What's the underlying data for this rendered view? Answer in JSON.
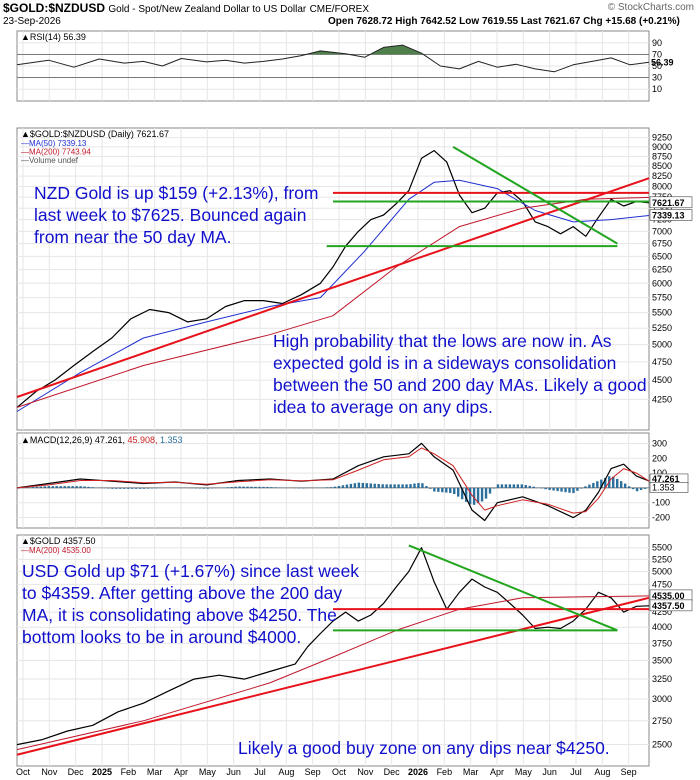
{
  "header": {
    "symbol": "$GOLD:$NZDUSD",
    "description": "Gold - Spot/New Zealand Dollar to US Dollar",
    "exchange": "CME/FOREX",
    "source": "© StockCharts.com",
    "date": "23-Sep-2026",
    "ohlc": "Open 7628.72 High 7642.52 Low 7619.55 Last 7621.67 Chg +15.68 (+0.21%)"
  },
  "colors": {
    "price": "#000000",
    "ma50": "#1f2fd0",
    "ma200": "#c0182b",
    "trend_red": "#e8121b",
    "trend_green": "#22a51f",
    "note_text": "#1010cc",
    "histogram": "#2b6f9c",
    "rsi_fill": "#4f7f4a",
    "macd": "#000000",
    "macd_signal": "#d02020"
  },
  "x_axis_labels": [
    "Oct",
    "Nov",
    "Dec",
    "2025",
    "Feb",
    "Mar",
    "Apr",
    "May",
    "Jun",
    "Jul",
    "Aug",
    "Sep",
    "Oct",
    "Nov",
    "Dec",
    "2026",
    "Feb",
    "Mar",
    "Apr",
    "May",
    "Jun",
    "Jul",
    "Aug",
    "Sep"
  ],
  "chart_data": [
    {
      "type": "line",
      "panel": "rsi",
      "title": "RSI(14) 56.39",
      "ylim": [
        0,
        100
      ],
      "yticks": [
        90,
        70,
        50,
        30,
        10
      ],
      "reference_lines": [
        70,
        30
      ],
      "last_value_label": "56.39",
      "series": [
        {
          "name": "RSI(14)",
          "x": [
            0,
            5,
            9,
            13,
            17,
            20,
            23,
            26,
            30,
            33,
            36,
            39,
            42,
            45,
            48,
            52,
            55,
            58,
            61,
            64,
            67,
            70,
            73,
            76,
            79,
            82,
            85,
            88,
            91,
            94,
            97,
            100
          ],
          "values": [
            52,
            60,
            48,
            62,
            55,
            58,
            50,
            63,
            57,
            60,
            55,
            58,
            62,
            68,
            76,
            71,
            65,
            82,
            86,
            72,
            50,
            45,
            58,
            48,
            53,
            45,
            40,
            52,
            58,
            64,
            52,
            56.39
          ]
        }
      ]
    },
    {
      "type": "line",
      "panel": "gold_nzd",
      "title": "$GOLD:$NZDUSD (Daily) 7621.67",
      "ylim": [
        3950,
        9350
      ],
      "log_scale": true,
      "yticks": [
        9250,
        9000,
        8750,
        8500,
        8250,
        8000,
        7750,
        7500,
        7250,
        7000,
        6750,
        6500,
        6250,
        6000,
        5750,
        5500,
        5250,
        5000,
        4750,
        4500,
        4250
      ],
      "legend": [
        "MA(50) 7339.13",
        "MA(200) 7743.94",
        "Volume undef"
      ],
      "last_labels": [
        "7621.67",
        "7339.13"
      ],
      "series": [
        {
          "name": "$GOLD:$NZDUSD",
          "x": [
            0,
            3,
            6,
            9,
            12,
            15,
            18,
            21,
            24,
            27,
            30,
            33,
            36,
            39,
            42,
            45,
            48,
            50,
            52,
            54,
            56,
            58,
            60,
            62,
            64,
            66,
            68,
            70,
            72,
            74,
            76,
            78,
            80,
            82,
            84,
            86,
            88,
            90,
            92,
            94,
            96,
            98,
            100
          ],
          "values": [
            4150,
            4350,
            4500,
            4700,
            4900,
            5100,
            5400,
            5550,
            5500,
            5350,
            5400,
            5600,
            5700,
            5700,
            5650,
            5800,
            6000,
            6300,
            6700,
            7000,
            7250,
            7350,
            7600,
            7900,
            8700,
            8900,
            8600,
            7800,
            7400,
            7500,
            7850,
            7900,
            7650,
            7200,
            7100,
            6950,
            7100,
            6900,
            7300,
            7700,
            7550,
            7650,
            7621.67
          ]
        },
        {
          "name": "MA(50)",
          "x": [
            0,
            10,
            20,
            30,
            40,
            48,
            55,
            62,
            66,
            70,
            76,
            82,
            88,
            94,
            100
          ],
          "values": [
            4100,
            4600,
            5100,
            5350,
            5600,
            5750,
            6600,
            7700,
            8100,
            8150,
            7950,
            7450,
            7200,
            7250,
            7339.13
          ]
        },
        {
          "name": "MA(200)",
          "x": [
            0,
            20,
            40,
            50,
            60,
            70,
            80,
            90,
            100
          ],
          "values": [
            4150,
            4700,
            5150,
            5450,
            6300,
            7100,
            7500,
            7700,
            7743.94
          ]
        }
      ],
      "trendlines": [
        {
          "color": "red",
          "x": [
            0,
            100
          ],
          "values": [
            4280,
            8200
          ]
        },
        {
          "color": "red",
          "x": [
            50,
            100
          ],
          "values": [
            7850,
            7850
          ]
        },
        {
          "color": "green",
          "x": [
            50,
            100
          ],
          "values": [
            7650,
            7650
          ]
        },
        {
          "color": "green",
          "x": [
            49,
            95
          ],
          "values": [
            6700,
            6700
          ]
        },
        {
          "color": "green",
          "x": [
            69,
            95
          ],
          "values": [
            9000,
            6750
          ]
        }
      ],
      "annotations": [
        "NZD Gold is up $159 (+2.13%), from last week to $7625. Bounced again from near the 50 day MA.",
        "High probability that the lows are now in. As expected gold is in a sideways consolidation between the 50 and 200 day MAs. Likely a good idea to average on any dips."
      ]
    },
    {
      "type": "line",
      "panel": "macd",
      "title": "MACD(12,26,9)",
      "values_text": [
        "47.261",
        "45.908",
        "1.353"
      ],
      "ylim": [
        -230,
        330
      ],
      "yticks": [
        300,
        200,
        100,
        0,
        -100,
        -200
      ],
      "last_labels": [
        "47.261",
        "1.353"
      ],
      "series": [
        {
          "name": "MACD",
          "x": [
            0,
            5,
            10,
            15,
            20,
            25,
            30,
            35,
            40,
            45,
            50,
            54,
            58,
            62,
            64,
            66,
            69,
            72,
            74,
            76,
            80,
            84,
            88,
            90,
            92,
            94,
            96,
            98,
            100
          ],
          "values": [
            0,
            30,
            60,
            45,
            30,
            40,
            20,
            50,
            60,
            45,
            60,
            150,
            210,
            230,
            300,
            210,
            120,
            -150,
            -220,
            -100,
            -60,
            -120,
            -200,
            -150,
            -30,
            130,
            160,
            80,
            47
          ]
        },
        {
          "name": "Signal",
          "x": [
            0,
            5,
            10,
            15,
            20,
            25,
            30,
            35,
            40,
            45,
            50,
            54,
            58,
            62,
            64,
            66,
            69,
            72,
            74,
            76,
            80,
            84,
            88,
            90,
            92,
            94,
            96,
            98,
            100
          ],
          "values": [
            0,
            20,
            50,
            50,
            35,
            38,
            25,
            42,
            55,
            48,
            55,
            120,
            190,
            210,
            270,
            230,
            150,
            -50,
            -150,
            -120,
            -80,
            -110,
            -170,
            -160,
            -70,
            60,
            130,
            100,
            45.9
          ]
        }
      ]
    },
    {
      "type": "line",
      "panel": "gold_usd",
      "title": "$GOLD 4357.50",
      "ylim": [
        2350,
        5650
      ],
      "log_scale": true,
      "yticks": [
        5500,
        5250,
        5000,
        4750,
        4500,
        4250,
        4000,
        3750,
        3500,
        3250,
        3000,
        2750,
        2500
      ],
      "legend": [
        "MA(200) 4535.00"
      ],
      "last_labels": [
        "4535.00",
        "4357.50"
      ],
      "series": [
        {
          "name": "$GOLD",
          "x": [
            0,
            4,
            8,
            12,
            16,
            20,
            24,
            28,
            32,
            36,
            40,
            44,
            46,
            48,
            50,
            52,
            54,
            56,
            58,
            60,
            62,
            64,
            66,
            68,
            70,
            72,
            74,
            76,
            78,
            80,
            82,
            84,
            86,
            88,
            90,
            92,
            94,
            96,
            98,
            100
          ],
          "values": [
            2500,
            2550,
            2640,
            2700,
            2850,
            2950,
            3100,
            3250,
            3300,
            3250,
            3350,
            3450,
            3700,
            3900,
            4100,
            4250,
            4100,
            4200,
            4400,
            4700,
            5000,
            5500,
            4800,
            4300,
            4600,
            4850,
            4700,
            4600,
            4400,
            4200,
            3980,
            4000,
            3980,
            4100,
            4300,
            4600,
            4500,
            4250,
            4350,
            4357.5
          ]
        },
        {
          "name": "MA(200)",
          "x": [
            0,
            20,
            40,
            50,
            60,
            70,
            80,
            90,
            100
          ],
          "values": [
            2450,
            2750,
            3200,
            3550,
            3950,
            4300,
            4500,
            4520,
            4535
          ]
        }
      ],
      "trendlines": [
        {
          "color": "red",
          "x": [
            0,
            100
          ],
          "values": [
            2400,
            4500
          ]
        },
        {
          "color": "red",
          "x": [
            50,
            100
          ],
          "values": [
            4300,
            4300
          ]
        },
        {
          "color": "green",
          "x": [
            50,
            95
          ],
          "values": [
            3950,
            3950
          ]
        },
        {
          "color": "green",
          "x": [
            62,
            95
          ],
          "values": [
            5550,
            3950
          ]
        }
      ],
      "annotations": [
        "USD Gold up $71 (+1.67%) since last week to $4359. After getting above the 200 day MA, it is consolidating above $4250. The bottom looks to be in around $4000.",
        "Likely a good buy zone on any dips near $4250."
      ]
    }
  ]
}
